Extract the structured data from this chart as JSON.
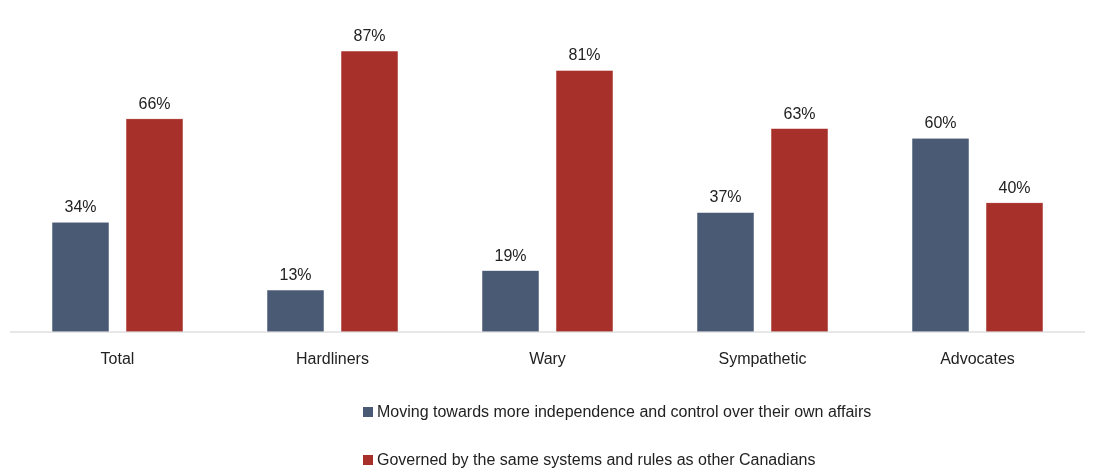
{
  "chart_data": {
    "type": "bar",
    "categories": [
      "Total",
      "Hardliners",
      "Wary",
      "Sympathetic",
      "Advocates"
    ],
    "series": [
      {
        "name": "Moving towards more independence and control over their own affairs",
        "color": "#4a5a75",
        "values": [
          34,
          13,
          19,
          37,
          60
        ],
        "value_labels": [
          "34%",
          "13%",
          "19%",
          "37%",
          "60%"
        ]
      },
      {
        "name": "Governed by the same systems and rules as other Canadians",
        "color": "#a8302a",
        "values": [
          66,
          87,
          81,
          63,
          40
        ],
        "value_labels": [
          "66%",
          "87%",
          "81%",
          "63%",
          "40%"
        ]
      }
    ],
    "legend": "bottom"
  }
}
